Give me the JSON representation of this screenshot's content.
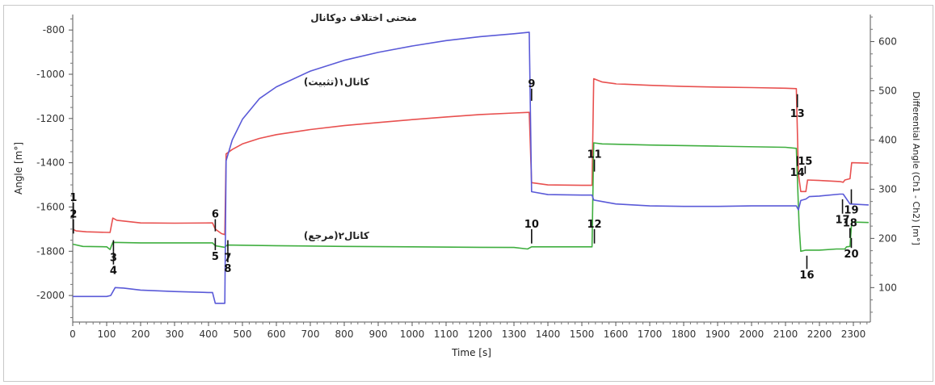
{
  "chart_data": {
    "type": "line",
    "title": "منحنی اختلاف دوکانال",
    "xlabel": "Time [s]",
    "ylabel": "Angle [m°]",
    "y2label": "Differential Angle (Ch1 - Ch2) [m°]",
    "xlim": [
      0,
      2350
    ],
    "ylim": [
      -2120,
      -730
    ],
    "y2lim": [
      30,
      655
    ],
    "x_ticks": [
      0,
      100,
      200,
      300,
      400,
      500,
      600,
      700,
      800,
      900,
      1000,
      1100,
      1200,
      1300,
      1400,
      1500,
      1600,
      1700,
      1800,
      1900,
      2000,
      2100,
      2200,
      2300
    ],
    "y_ticks": [
      -800,
      -1000,
      -1200,
      -1400,
      -1600,
      -1800,
      -2000
    ],
    "y2_ticks": [
      600,
      500,
      400,
      300,
      200,
      100
    ],
    "grid": false,
    "series": [
      {
        "name": "کانال۱(تثبیت)",
        "axis": "left",
        "color": "#e8504f",
        "points": [
          [
            0,
            -1700
          ],
          [
            10,
            -1708
          ],
          [
            40,
            -1712
          ],
          [
            110,
            -1715
          ],
          [
            118,
            -1650
          ],
          [
            130,
            -1660
          ],
          [
            200,
            -1672
          ],
          [
            300,
            -1673
          ],
          [
            412,
            -1672
          ],
          [
            420,
            -1700
          ],
          [
            438,
            -1720
          ],
          [
            448,
            -1725
          ],
          [
            452,
            -1360
          ],
          [
            470,
            -1340
          ],
          [
            500,
            -1315
          ],
          [
            550,
            -1290
          ],
          [
            600,
            -1273
          ],
          [
            700,
            -1250
          ],
          [
            800,
            -1232
          ],
          [
            900,
            -1218
          ],
          [
            1000,
            -1205
          ],
          [
            1100,
            -1193
          ],
          [
            1200,
            -1182
          ],
          [
            1300,
            -1175
          ],
          [
            1345,
            -1172
          ],
          [
            1352,
            -1490
          ],
          [
            1400,
            -1500
          ],
          [
            1500,
            -1502
          ],
          [
            1530,
            -1502
          ],
          [
            1535,
            -1020
          ],
          [
            1560,
            -1035
          ],
          [
            1600,
            -1043
          ],
          [
            1700,
            -1050
          ],
          [
            1800,
            -1055
          ],
          [
            1900,
            -1058
          ],
          [
            2000,
            -1060
          ],
          [
            2100,
            -1063
          ],
          [
            2132,
            -1065
          ],
          [
            2138,
            -1450
          ],
          [
            2145,
            -1530
          ],
          [
            2160,
            -1530
          ],
          [
            2165,
            -1478
          ],
          [
            2200,
            -1480
          ],
          [
            2260,
            -1485
          ],
          [
            2270,
            -1488
          ],
          [
            2275,
            -1478
          ],
          [
            2290,
            -1472
          ],
          [
            2295,
            -1400
          ],
          [
            2345,
            -1402
          ]
        ]
      },
      {
        "name": "کانال۲(مرجع)",
        "axis": "left",
        "color": "#3fae3f",
        "points": [
          [
            0,
            -1768
          ],
          [
            30,
            -1778
          ],
          [
            100,
            -1780
          ],
          [
            110,
            -1792
          ],
          [
            118,
            -1760
          ],
          [
            200,
            -1762
          ],
          [
            300,
            -1762
          ],
          [
            412,
            -1762
          ],
          [
            420,
            -1775
          ],
          [
            448,
            -1782
          ],
          [
            455,
            -1772
          ],
          [
            600,
            -1775
          ],
          [
            800,
            -1778
          ],
          [
            1000,
            -1780
          ],
          [
            1200,
            -1782
          ],
          [
            1300,
            -1783
          ],
          [
            1340,
            -1790
          ],
          [
            1352,
            -1780
          ],
          [
            1530,
            -1780
          ],
          [
            1535,
            -1310
          ],
          [
            1560,
            -1315
          ],
          [
            1700,
            -1320
          ],
          [
            1900,
            -1325
          ],
          [
            2100,
            -1330
          ],
          [
            2132,
            -1335
          ],
          [
            2140,
            -1680
          ],
          [
            2145,
            -1800
          ],
          [
            2160,
            -1795
          ],
          [
            2200,
            -1795
          ],
          [
            2250,
            -1790
          ],
          [
            2275,
            -1790
          ],
          [
            2280,
            -1780
          ],
          [
            2290,
            -1778
          ],
          [
            2295,
            -1668
          ],
          [
            2345,
            -1670
          ]
        ]
      },
      {
        "name": "منحنی اختلاف دوکانال",
        "axis": "right",
        "color": "#5a5ad8",
        "points": [
          [
            0,
            82
          ],
          [
            100,
            82
          ],
          [
            112,
            84
          ],
          [
            125,
            100
          ],
          [
            150,
            99
          ],
          [
            200,
            95
          ],
          [
            300,
            92
          ],
          [
            400,
            90
          ],
          [
            412,
            90
          ],
          [
            420,
            68
          ],
          [
            448,
            68
          ],
          [
            452,
            358
          ],
          [
            470,
            400
          ],
          [
            500,
            442
          ],
          [
            550,
            484
          ],
          [
            600,
            508
          ],
          [
            700,
            540
          ],
          [
            800,
            562
          ],
          [
            900,
            578
          ],
          [
            1000,
            591
          ],
          [
            1100,
            602
          ],
          [
            1200,
            610
          ],
          [
            1300,
            616
          ],
          [
            1345,
            619
          ],
          [
            1352,
            295
          ],
          [
            1400,
            289
          ],
          [
            1500,
            288
          ],
          [
            1530,
            288
          ],
          [
            1535,
            278
          ],
          [
            1600,
            270
          ],
          [
            1700,
            266
          ],
          [
            1800,
            265
          ],
          [
            1900,
            265
          ],
          [
            2000,
            266
          ],
          [
            2100,
            266
          ],
          [
            2132,
            266
          ],
          [
            2138,
            258
          ],
          [
            2145,
            277
          ],
          [
            2160,
            280
          ],
          [
            2170,
            285
          ],
          [
            2200,
            286
          ],
          [
            2260,
            290
          ],
          [
            2270,
            290
          ],
          [
            2290,
            270
          ],
          [
            2345,
            268
          ]
        ]
      }
    ],
    "markers": [
      {
        "label": "1",
        "x": 2,
        "y": -1580,
        "h": -1650,
        "anchor": "above"
      },
      {
        "label": "2",
        "x": 2,
        "y": -1655,
        "h": -1720,
        "anchor": "above"
      },
      {
        "label": "3",
        "x": 120,
        "y": -1800,
        "h": -1750,
        "anchor": "below"
      },
      {
        "label": "4",
        "x": 120,
        "y": -1860,
        "h": -1800,
        "anchor": "below"
      },
      {
        "label": "5",
        "x": 420,
        "y": -1795,
        "h": -1740,
        "anchor": "below"
      },
      {
        "label": "6",
        "x": 420,
        "y": -1655,
        "h": -1710,
        "anchor": "above"
      },
      {
        "label": "7",
        "x": 457,
        "y": -1800,
        "h": -1750,
        "anchor": "below"
      },
      {
        "label": "8",
        "x": 457,
        "y": -1850,
        "h": -1800,
        "anchor": "below"
      },
      {
        "label": "9",
        "x": 1352,
        "y": -1065,
        "h": -1120,
        "anchor": "above"
      },
      {
        "label": "10",
        "x": 1352,
        "y": -1700,
        "h": -1765,
        "anchor": "above"
      },
      {
        "label": "11",
        "x": 1537,
        "y": -1385,
        "h": -1440,
        "anchor": "above"
      },
      {
        "label": "12",
        "x": 1537,
        "y": -1700,
        "h": -1765,
        "anchor": "above"
      },
      {
        "label": "13",
        "x": 2135,
        "y": -1150,
        "h": -1090,
        "anchor": "below"
      },
      {
        "label": "14",
        "x": 2135,
        "y": -1415,
        "h": -1370,
        "anchor": "below"
      },
      {
        "label": "15",
        "x": 2158,
        "y": -1415,
        "h": -1450,
        "anchor": "above"
      },
      {
        "label": "16",
        "x": 2163,
        "y": -1880,
        "h": -1820,
        "anchor": "below"
      },
      {
        "label": "17",
        "x": 2268,
        "y": -1630,
        "h": -1565,
        "anchor": "below"
      },
      {
        "label": "18",
        "x": 2290,
        "y": -1695,
        "h": -1740,
        "anchor": "above"
      },
      {
        "label": "19",
        "x": 2294,
        "y": -1585,
        "h": -1520,
        "anchor": "below"
      },
      {
        "label": "20",
        "x": 2294,
        "y": -1785,
        "h": -1740,
        "anchor": "below"
      }
    ],
    "annotations": [
      {
        "text": "منحنی اختلاف دوکانال",
        "x": 1000,
        "y": -760,
        "color": "#222222",
        "series": 2
      },
      {
        "text": "کانال۱(تثبیت)",
        "x": 920,
        "y": -1050,
        "color": "#222222",
        "series": 0
      },
      {
        "text": "کانال۲(مرجع)",
        "x": 920,
        "y": -1745,
        "color": "#222222",
        "series": 1
      }
    ]
  }
}
